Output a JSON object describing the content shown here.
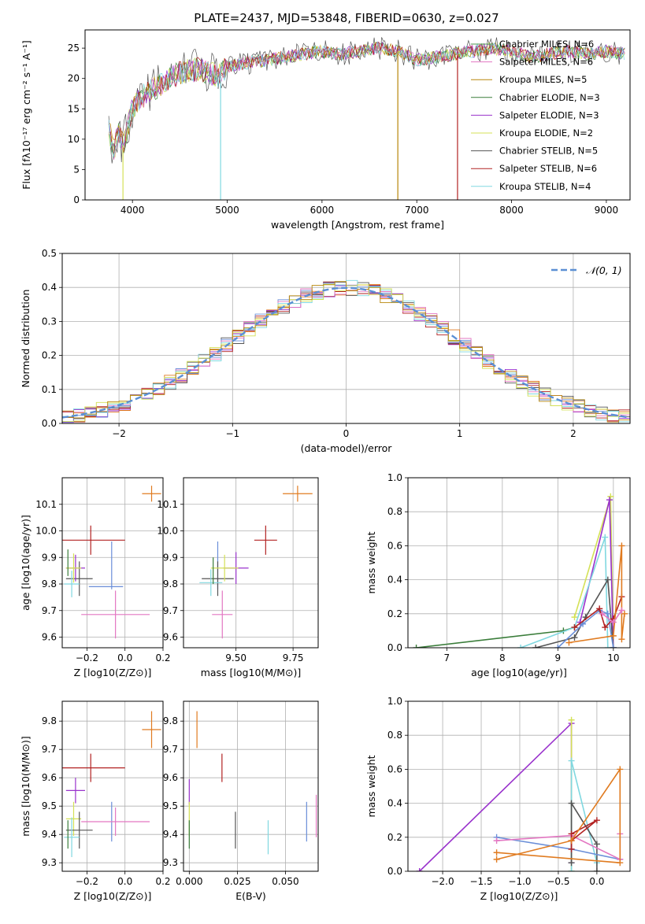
{
  "figure_title": "PLATE=2437, MJD=53848, FIBERID=0630, z=0.027",
  "chart_data": [
    {
      "id": "spectrum",
      "type": "line",
      "xlabel": "wavelength [Angstrom, rest frame]",
      "ylabel": "Flux [fλ10⁻¹⁷ erg cm⁻² s⁻¹ A⁻¹]",
      "xlim": [
        3500,
        9250
      ],
      "ylim": [
        0,
        28
      ],
      "xticks": [
        4000,
        5000,
        6000,
        7000,
        8000,
        9000
      ],
      "yticks": [
        0,
        5,
        10,
        15,
        20,
        25
      ],
      "grid": false,
      "legend_position": "upper-right",
      "continuum_x": [
        3750,
        3800,
        3850,
        3900,
        3950,
        4000,
        4100,
        4200,
        4300,
        4400,
        4500,
        4700,
        4900,
        5000,
        5200,
        5400,
        5600,
        5800,
        6000,
        6200,
        6400,
        6600,
        6800,
        7000,
        7200,
        7400,
        7600,
        7800,
        8000,
        8200,
        8400,
        8600,
        8800,
        9000,
        9200
      ],
      "continuum_y": [
        12,
        8,
        11,
        9,
        12,
        15,
        17,
        18,
        19,
        20,
        21,
        21.5,
        20.5,
        22,
        22.5,
        23,
        23.5,
        24,
        24.5,
        24,
        24.5,
        25,
        24.5,
        23,
        23.5,
        24,
        24.5,
        25,
        24.5,
        23.5,
        24,
        24.5,
        24,
        24.5,
        24
      ],
      "series": [
        {
          "name": "Chabrier MILES, N_SSP=6",
          "color": "#4f9a4f"
        },
        {
          "name": "Salpeter MILES, N_SSP=6",
          "color": "#e377c2"
        },
        {
          "name": "Kroupa MILES, N_SSP=5",
          "color": "#b8860b"
        },
        {
          "name": "Chabrier ELODIE, N_SSP=3",
          "color": "#3a7d3a"
        },
        {
          "name": "Salpeter ELODIE, N_SSP=3",
          "color": "#9932cc"
        },
        {
          "name": "Kroupa ELODIE, N_SSP=2",
          "color": "#d4e157"
        },
        {
          "name": "Chabrier STELIB, N_SSP=5",
          "color": "#555555"
        },
        {
          "name": "Salpeter STELIB, N_SSP=6",
          "color": "#b22222"
        },
        {
          "name": "Kroupa STELIB, N_SSP=4",
          "color": "#80d8e0"
        }
      ],
      "dips": [
        {
          "x": 3900,
          "y": 0,
          "color": "#d4e157"
        },
        {
          "x": 4930,
          "y": 0,
          "color": "#80d8e0"
        },
        {
          "x": 6800,
          "y": 0,
          "color": "#b8860b"
        },
        {
          "x": 7430,
          "y": 0,
          "color": "#b22222"
        }
      ]
    },
    {
      "id": "residuals",
      "type": "line",
      "xlabel": "(data-model)/error",
      "ylabel": "Normed distribution",
      "xlim": [
        -2.5,
        2.5
      ],
      "ylim": [
        0,
        0.5
      ],
      "xticks": [
        -2,
        -1,
        0,
        1,
        2
      ],
      "yticks": [
        0.0,
        0.1,
        0.2,
        0.3,
        0.4,
        0.5
      ],
      "grid": true,
      "legend_position": "upper-right",
      "legend_label": "𝒩(0, 1)",
      "gaussian_color": "#5b8fd4",
      "histogram_colors": [
        "#e07b20",
        "#9932cc",
        "#b22222",
        "#555555",
        "#6a8ed8",
        "#e377c2",
        "#80d8e0",
        "#d4e157",
        "#b8860b"
      ]
    },
    {
      "id": "age-vs-Z",
      "type": "scatter",
      "xlabel": "Z [log10(Z/Z⊙)]",
      "ylabel": "age  [log10(age/yr)]",
      "xlim": [
        -0.33,
        0.2
      ],
      "ylim": [
        9.56,
        10.2
      ],
      "xticks": [
        -0.2,
        0.0,
        0.2
      ],
      "yticks": [
        9.6,
        9.7,
        9.8,
        9.9,
        10.0,
        10.1
      ],
      "grid": true,
      "points": [
        {
          "x": 0.14,
          "y": 10.14,
          "xerr": 0.05,
          "yerr": 0.03,
          "color": "#e07b20"
        },
        {
          "x": -0.18,
          "y": 9.965,
          "xerr": 0.18,
          "yerr": 0.055,
          "color": "#b22222"
        },
        {
          "x": -0.07,
          "y": 9.87,
          "xerr": 0.0,
          "yerr": 0.09,
          "color": "#6a8ed8"
        },
        {
          "x": -0.24,
          "y": 9.82,
          "xerr": 0.07,
          "yerr": 0.065,
          "color": "#555555"
        },
        {
          "x": -0.26,
          "y": 9.86,
          "xerr": 0.05,
          "yerr": 0.05,
          "color": "#9932cc"
        },
        {
          "x": -0.27,
          "y": 9.86,
          "xerr": 0.04,
          "yerr": 0.055,
          "color": "#d4e157"
        },
        {
          "x": -0.28,
          "y": 9.8,
          "xerr": 0.04,
          "yerr": 0.05,
          "color": "#80d8e0"
        },
        {
          "x": -0.1,
          "y": 9.79,
          "xerr": 0.09,
          "yerr": 0.0,
          "color": "#6a8ed8"
        },
        {
          "x": -0.05,
          "y": 9.685,
          "xerr": 0.18,
          "yerr": 0.09,
          "color": "#e377c2"
        },
        {
          "x": -0.3,
          "y": 9.88,
          "xerr": 0.0,
          "yerr": 0.05,
          "color": "#3a7d3a"
        }
      ]
    },
    {
      "id": "age-vs-mass",
      "type": "scatter",
      "xlabel": "mass [log10(M/M⊙)]",
      "ylabel": "",
      "xlim": [
        9.27,
        9.86
      ],
      "ylim": [
        9.56,
        10.2
      ],
      "xticks": [
        9.5,
        9.75
      ],
      "yticks": [
        9.6,
        9.7,
        9.8,
        9.9,
        10.0,
        10.1
      ],
      "grid": true,
      "points": [
        {
          "x": 9.77,
          "y": 10.14,
          "xerr": 0.065,
          "yerr": 0.03,
          "color": "#e07b20"
        },
        {
          "x": 9.63,
          "y": 9.965,
          "xerr": 0.05,
          "yerr": 0.055,
          "color": "#b22222"
        },
        {
          "x": 9.42,
          "y": 9.87,
          "xerr": 0.0,
          "yerr": 0.09,
          "color": "#6a8ed8"
        },
        {
          "x": 9.42,
          "y": 9.82,
          "xerr": 0.07,
          "yerr": 0.065,
          "color": "#555555"
        },
        {
          "x": 9.5,
          "y": 9.86,
          "xerr": 0.055,
          "yerr": 0.06,
          "color": "#9932cc"
        },
        {
          "x": 9.45,
          "y": 9.86,
          "xerr": 0.06,
          "yerr": 0.05,
          "color": "#d4e157"
        },
        {
          "x": 9.39,
          "y": 9.805,
          "xerr": 0.05,
          "yerr": 0.05,
          "color": "#80d8e0"
        },
        {
          "x": 9.44,
          "y": 9.685,
          "xerr": 0.045,
          "yerr": 0.09,
          "color": "#e377c2"
        },
        {
          "x": 9.4,
          "y": 9.85,
          "xerr": 0.0,
          "yerr": 0.05,
          "color": "#3a7d3a"
        }
      ]
    },
    {
      "id": "massweight-vs-age",
      "type": "line",
      "xlabel": "age  [log10(age/yr)]",
      "ylabel": "mass weight",
      "xlim": [
        6.3,
        10.3
      ],
      "ylim": [
        0,
        1.0
      ],
      "xticks": [
        7,
        8,
        9,
        10
      ],
      "yticks": [
        0.0,
        0.2,
        0.4,
        0.6,
        0.8,
        1.0
      ],
      "grid": true,
      "series": [
        {
          "color": "#3a7d3a",
          "x": [
            6.45,
            9.1,
            9.3
          ],
          "y": [
            0.0,
            0.1,
            0.12
          ]
        },
        {
          "color": "#d4e157",
          "x": [
            9.3,
            9.95,
            10.0
          ],
          "y": [
            0.18,
            0.89,
            0.0
          ]
        },
        {
          "color": "#9932cc",
          "x": [
            9.4,
            9.93,
            10.0
          ],
          "y": [
            0.15,
            0.87,
            0.0
          ]
        },
        {
          "color": "#80d8e0",
          "x": [
            8.33,
            9.3,
            9.85,
            9.9,
            10.0
          ],
          "y": [
            0.0,
            0.12,
            0.65,
            0.0,
            0.0
          ]
        },
        {
          "color": "#555555",
          "x": [
            8.6,
            9.3,
            9.5,
            9.9,
            10.0
          ],
          "y": [
            0.0,
            0.06,
            0.18,
            0.4,
            0.0
          ]
        },
        {
          "color": "#6a8ed8",
          "x": [
            9.0,
            9.45,
            9.75,
            9.9,
            10.0
          ],
          "y": [
            0.0,
            0.14,
            0.22,
            0.2,
            0.0
          ]
        },
        {
          "color": "#b22222",
          "x": [
            9.3,
            9.75,
            9.85,
            10.0,
            10.15
          ],
          "y": [
            0.12,
            0.23,
            0.12,
            0.17,
            0.3
          ]
        },
        {
          "color": "#e07b20",
          "x": [
            9.2,
            10.0,
            10.15,
            10.15,
            10.2
          ],
          "y": [
            0.03,
            0.07,
            0.6,
            0.05,
            0.2
          ]
        },
        {
          "color": "#e377c2",
          "x": [
            9.8,
            10.0,
            10.15
          ],
          "y": [
            0.2,
            0.15,
            0.22
          ]
        }
      ]
    },
    {
      "id": "mass-vs-Z",
      "type": "scatter",
      "xlabel": "Z [log10(Z/Z⊙)]",
      "ylabel": "mass [log10(M/M⊙)]",
      "xlim": [
        -0.33,
        0.2
      ],
      "ylim": [
        9.27,
        9.87
      ],
      "xticks": [
        -0.2,
        0.0,
        0.2
      ],
      "yticks": [
        9.3,
        9.4,
        9.5,
        9.6,
        9.7,
        9.8
      ],
      "grid": true,
      "points": [
        {
          "x": 0.14,
          "y": 9.77,
          "xerr": 0.05,
          "yerr": 0.065,
          "color": "#e07b20"
        },
        {
          "x": -0.18,
          "y": 9.635,
          "xerr": 0.18,
          "yerr": 0.05,
          "color": "#b22222"
        },
        {
          "x": -0.26,
          "y": 9.555,
          "xerr": 0.05,
          "yerr": 0.045,
          "color": "#9932cc"
        },
        {
          "x": -0.27,
          "y": 9.455,
          "xerr": 0.04,
          "yerr": 0.06,
          "color": "#d4e157"
        },
        {
          "x": -0.07,
          "y": 9.445,
          "xerr": 0.0,
          "yerr": 0.07,
          "color": "#6a8ed8"
        },
        {
          "x": -0.05,
          "y": 9.445,
          "xerr": 0.18,
          "yerr": 0.05,
          "color": "#e377c2"
        },
        {
          "x": -0.24,
          "y": 9.415,
          "xerr": 0.07,
          "yerr": 0.065,
          "color": "#555555"
        },
        {
          "x": -0.28,
          "y": 9.39,
          "xerr": 0.04,
          "yerr": 0.07,
          "color": "#80d8e0"
        },
        {
          "x": -0.3,
          "y": 9.4,
          "xerr": 0.0,
          "yerr": 0.05,
          "color": "#3a7d3a"
        }
      ]
    },
    {
      "id": "mass-vs-EBV",
      "type": "scatter",
      "xlabel": "E(B-V)",
      "ylabel": "",
      "xlim": [
        -0.003,
        0.067
      ],
      "ylim": [
        9.27,
        9.87
      ],
      "xticks": [
        0.0,
        0.025,
        0.05
      ],
      "yticks": [
        9.3,
        9.4,
        9.5,
        9.6,
        9.7,
        9.8
      ],
      "grid": true,
      "points": [
        {
          "x": 0.004,
          "y": 9.77,
          "xerr": 0.0,
          "yerr": 0.065,
          "color": "#e07b20"
        },
        {
          "x": 0.017,
          "y": 9.635,
          "xerr": 0.0,
          "yerr": 0.05,
          "color": "#b22222"
        },
        {
          "x": 0.0,
          "y": 9.55,
          "xerr": 0.0,
          "yerr": 0.045,
          "color": "#9932cc"
        },
        {
          "x": 0.0,
          "y": 9.455,
          "xerr": 0.0,
          "yerr": 0.06,
          "color": "#d4e157"
        },
        {
          "x": 0.061,
          "y": 9.445,
          "xerr": 0.0,
          "yerr": 0.07,
          "color": "#6a8ed8"
        },
        {
          "x": 0.066,
          "y": 9.465,
          "xerr": 0.0,
          "yerr": 0.075,
          "color": "#e377c2"
        },
        {
          "x": 0.024,
          "y": 9.415,
          "xerr": 0.0,
          "yerr": 0.065,
          "color": "#555555"
        },
        {
          "x": 0.041,
          "y": 9.39,
          "xerr": 0.0,
          "yerr": 0.06,
          "color": "#80d8e0"
        },
        {
          "x": 0.0,
          "y": 9.4,
          "xerr": 0.0,
          "yerr": 0.05,
          "color": "#3a7d3a"
        }
      ]
    },
    {
      "id": "massweight-vs-Z",
      "type": "line",
      "xlabel": "Z [log10(Z/Z⊙)]",
      "ylabel": "mass weight",
      "xlim": [
        -2.45,
        0.43
      ],
      "ylim": [
        0,
        1.0
      ],
      "xticks": [
        -2.0,
        -1.5,
        -1.0,
        -0.5,
        0.0
      ],
      "yticks": [
        0.0,
        0.2,
        0.4,
        0.6,
        0.8,
        1.0
      ],
      "grid": true,
      "series": [
        {
          "color": "#9932cc",
          "x": [
            -2.3,
            -0.33,
            -0.33
          ],
          "y": [
            0.0,
            0.87,
            0.05
          ]
        },
        {
          "color": "#d4e157",
          "x": [
            -0.33,
            -0.33
          ],
          "y": [
            0.0,
            0.89
          ]
        },
        {
          "color": "#80d8e0",
          "x": [
            -0.33,
            -0.33,
            0.0
          ],
          "y": [
            0.0,
            0.65,
            0.05
          ]
        },
        {
          "color": "#555555",
          "x": [
            -0.33,
            -0.33,
            0.0,
            0.0
          ],
          "y": [
            0.05,
            0.4,
            0.16,
            0.0
          ]
        },
        {
          "color": "#6a8ed8",
          "x": [
            -1.3,
            -0.33,
            0.3
          ],
          "y": [
            0.2,
            0.13,
            0.07
          ]
        },
        {
          "color": "#e377c2",
          "x": [
            -1.3,
            -0.33,
            0.3,
            0.3
          ],
          "y": [
            0.18,
            0.21,
            0.07,
            0.22
          ]
        },
        {
          "color": "#b22222",
          "x": [
            -0.33,
            0.0,
            -0.33,
            -0.33
          ],
          "y": [
            0.18,
            0.3,
            0.22,
            0.13
          ]
        },
        {
          "color": "#e07b20",
          "x": [
            -1.3,
            -0.33,
            0.3,
            0.3,
            -1.3
          ],
          "y": [
            0.07,
            0.18,
            0.6,
            0.05,
            0.11
          ]
        }
      ]
    }
  ]
}
